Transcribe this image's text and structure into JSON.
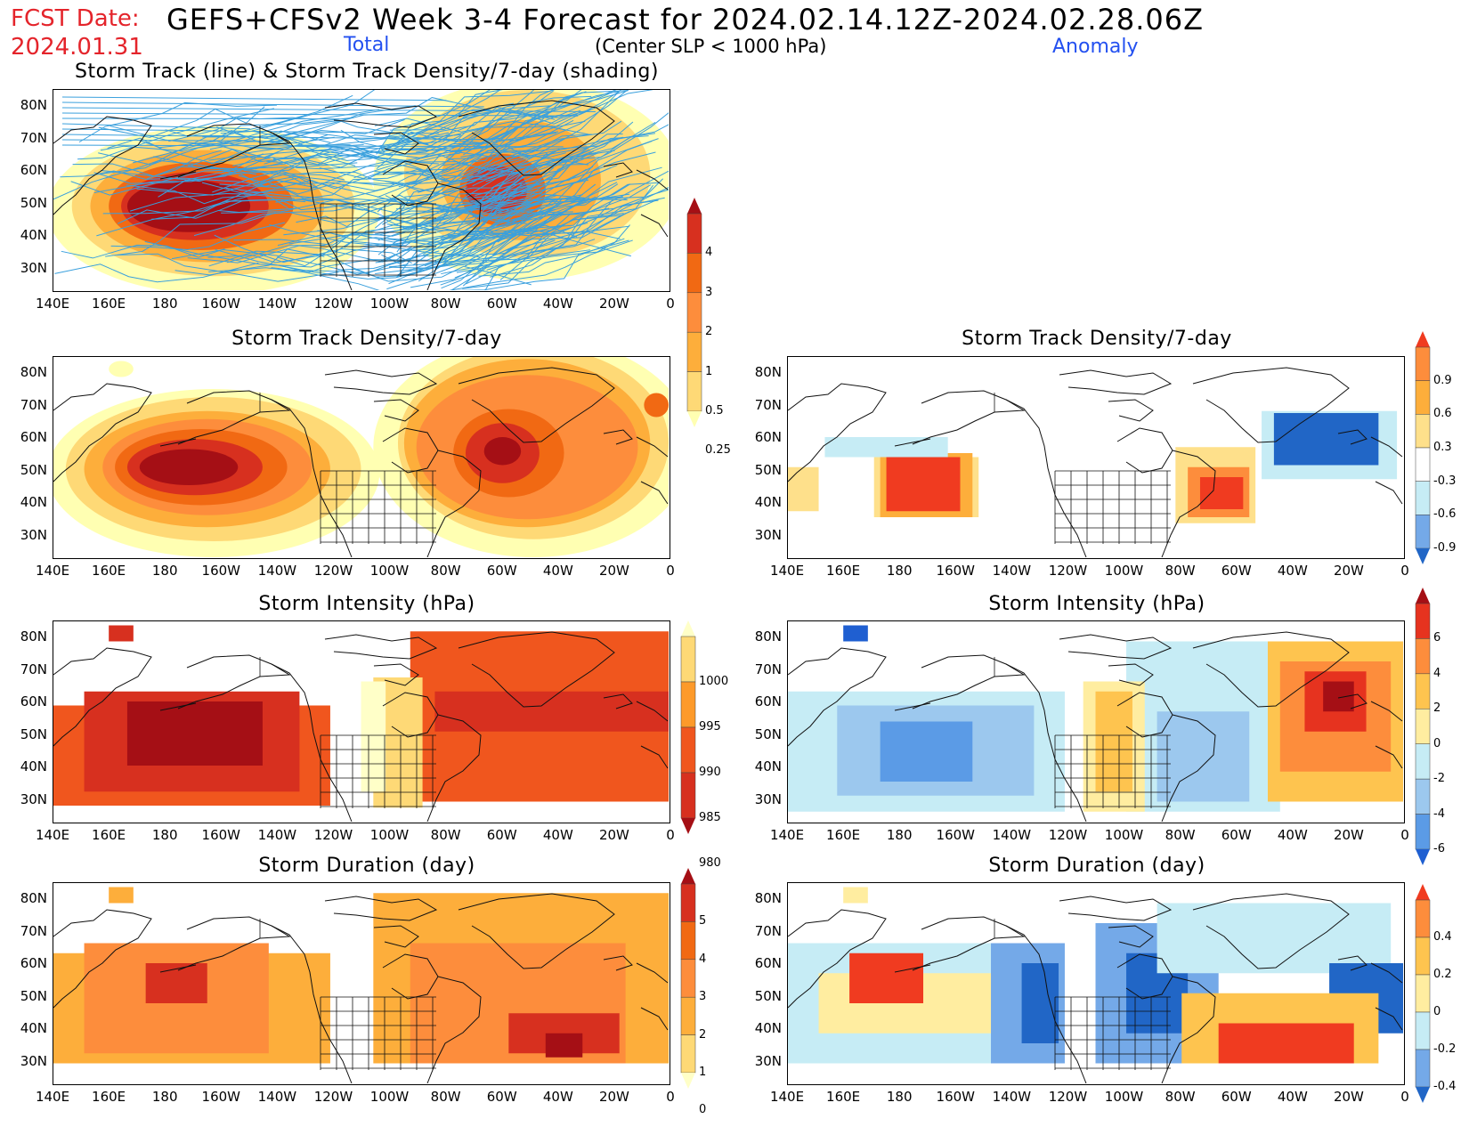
{
  "header": {
    "fcst_label": "FCST Date:",
    "fcst_date": "2024.01.31",
    "main_title": "GEFS+CFSv2 Week 3-4 Forecast for 2024.02.14.12Z-2024.02.28.06Z",
    "total_label": "Total",
    "center_note": "(Center SLP < 1000 hPa)",
    "anomaly_label": "Anomaly"
  },
  "axes": {
    "lat_ticks": [
      "80N",
      "70N",
      "60N",
      "50N",
      "40N",
      "30N"
    ],
    "lon_ticks": [
      "140E",
      "160E",
      "180",
      "160W",
      "140W",
      "120W",
      "100W",
      "80W",
      "60W",
      "40W",
      "20W",
      "0"
    ]
  },
  "panels": {
    "track": {
      "title": "Storm Track (line) & Storm Track Density/7-day (shading)"
    },
    "density_total": {
      "title": "Storm Track Density/7-day"
    },
    "density_anom": {
      "title": "Storm Track Density/7-day"
    },
    "intensity_total": {
      "title": "Storm Intensity (hPa)"
    },
    "intensity_anom": {
      "title": "Storm Intensity (hPa)"
    },
    "duration_total": {
      "title": "Storm Duration (day)"
    },
    "duration_anom": {
      "title": "Storm Duration (day)"
    }
  },
  "colorbars": {
    "density_total": {
      "labels": [
        "4",
        "3",
        "2",
        "1",
        "0.5",
        "0.25"
      ],
      "colors": [
        "#a50f15",
        "#d7301f",
        "#f16913",
        "#fd8d3c",
        "#fdae3b",
        "#fed976",
        "#ffffb2"
      ]
    },
    "density_anom": {
      "labels": [
        "0.9",
        "0.6",
        "0.3",
        "-0.3",
        "-0.6",
        "-0.9"
      ],
      "colors": [
        "#f03b20",
        "#fd8d3c",
        "#fdae3b",
        "#fee08b",
        "#ffffff",
        "#c6ecf5",
        "#74a9e8",
        "#2166c6"
      ]
    },
    "intensity_total": {
      "labels": [
        "1000",
        "995",
        "990",
        "985",
        "980"
      ],
      "colors": [
        "#ffffc8",
        "#fed976",
        "#fd9a2a",
        "#f0561e",
        "#d7301f",
        "#a50f15"
      ]
    },
    "intensity_anom": {
      "labels": [
        "6",
        "4",
        "2",
        "0",
        "-2",
        "-4",
        "-6"
      ],
      "colors": [
        "#a50f15",
        "#e6331f",
        "#fd8d3c",
        "#fec44f",
        "#ffeda0",
        "#c6ecf5",
        "#9cc8ee",
        "#5b9be6",
        "#1f5fd1"
      ]
    },
    "duration_total": {
      "labels": [
        "5",
        "4",
        "3",
        "2",
        "1",
        "0"
      ],
      "colors": [
        "#a50f15",
        "#d7301f",
        "#f16913",
        "#fd8d3c",
        "#fdae3b",
        "#fed976",
        "#ffffc8"
      ]
    },
    "duration_anom": {
      "labels": [
        "0.4",
        "0.2",
        "0",
        "-0.2",
        "-0.4"
      ],
      "colors": [
        "#f03b20",
        "#fd8d3c",
        "#fec44f",
        "#ffeda0",
        "#c6ecf5",
        "#74a9e8",
        "#2166c6"
      ]
    }
  }
}
